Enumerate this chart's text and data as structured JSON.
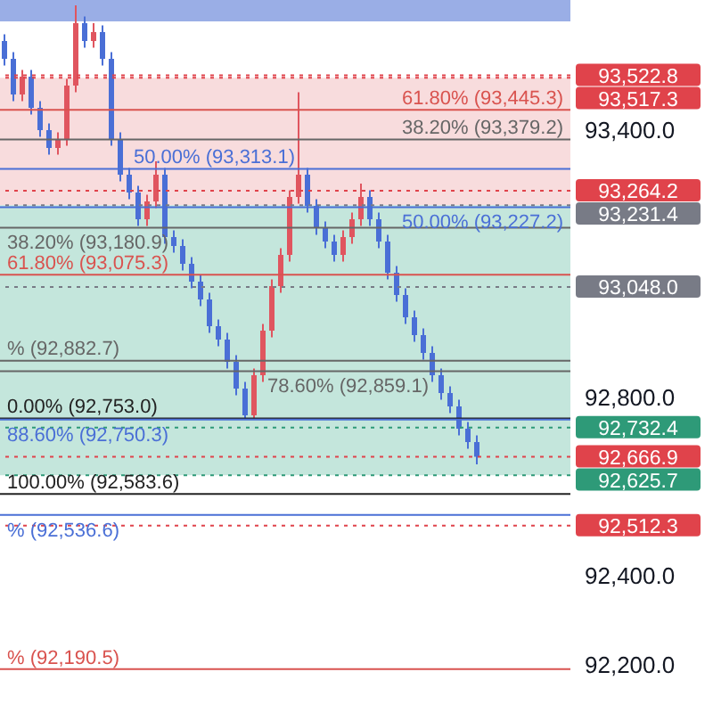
{
  "chart_data": {
    "type": "candlestick",
    "categories": [
      null,
      null,
      null,
      null,
      null,
      null,
      null,
      null,
      null,
      null,
      null,
      null,
      null,
      null,
      null,
      null,
      null,
      null,
      null,
      null,
      null,
      null,
      null,
      null,
      null,
      null,
      null,
      null,
      null,
      null,
      null,
      null,
      null,
      null,
      null,
      null,
      null,
      null,
      null,
      null,
      null,
      null,
      null,
      null,
      null,
      null,
      null,
      null,
      null,
      null,
      null,
      null,
      null,
      null,
      null,
      null,
      null,
      null,
      null,
      null,
      null,
      null,
      null,
      null
    ],
    "ohlc": [
      [
        93600,
        93615,
        93545,
        93560
      ],
      [
        93560,
        93575,
        93465,
        93480
      ],
      [
        93480,
        93535,
        93465,
        93520
      ],
      [
        93520,
        93535,
        93435,
        93450
      ],
      [
        93450,
        93465,
        93385,
        93400
      ],
      [
        93400,
        93415,
        93345,
        93360
      ],
      [
        93360,
        93395,
        93345,
        93380
      ],
      [
        93380,
        93515,
        93365,
        93500
      ],
      [
        93500,
        93680,
        93485,
        93640
      ],
      [
        93640,
        93655,
        93585,
        93600
      ],
      [
        93600,
        93640,
        93585,
        93620
      ],
      [
        93620,
        93635,
        93545,
        93560
      ],
      [
        93560,
        93575,
        93365,
        93380
      ],
      [
        93380,
        93395,
        93285,
        93300
      ],
      [
        93300,
        93315,
        93245,
        93260
      ],
      [
        93260,
        93275,
        93185,
        93200
      ],
      [
        93200,
        93255,
        93185,
        93240
      ],
      [
        93240,
        93330,
        93225,
        93300
      ],
      [
        93300,
        93315,
        93145,
        93160
      ],
      [
        93160,
        93175,
        93125,
        93140
      ],
      [
        93140,
        93155,
        93085,
        93100
      ],
      [
        93100,
        93115,
        93045,
        93060
      ],
      [
        93060,
        93075,
        93005,
        93020
      ],
      [
        93020,
        93035,
        92945,
        92960
      ],
      [
        92960,
        92975,
        92915,
        92930
      ],
      [
        92930,
        92945,
        92865,
        92880
      ],
      [
        92880,
        92895,
        92805,
        92820
      ],
      [
        92820,
        92835,
        92753,
        92760
      ],
      [
        92760,
        92865,
        92753,
        92850
      ],
      [
        92850,
        92965,
        92835,
        92950
      ],
      [
        92950,
        93065,
        92935,
        93050
      ],
      [
        93050,
        93135,
        93035,
        93120
      ],
      [
        93120,
        93265,
        93105,
        93250
      ],
      [
        93250,
        93485,
        93235,
        93300
      ],
      [
        93300,
        93315,
        93215,
        93230
      ],
      [
        93230,
        93245,
        93165,
        93180
      ],
      [
        93180,
        93195,
        93135,
        93150
      ],
      [
        93150,
        93165,
        93105,
        93120
      ],
      [
        93120,
        93175,
        93105,
        93160
      ],
      [
        93160,
        93215,
        93145,
        93200
      ],
      [
        93200,
        93280,
        93185,
        93250
      ],
      [
        93250,
        93265,
        93185,
        93200
      ],
      [
        93200,
        93215,
        93135,
        93150
      ],
      [
        93150,
        93165,
        93065,
        93080
      ],
      [
        93080,
        93095,
        93015,
        93030
      ],
      [
        93030,
        93045,
        92965,
        92980
      ],
      [
        92980,
        92995,
        92925,
        92940
      ],
      [
        92940,
        92955,
        92885,
        92900
      ],
      [
        92900,
        92915,
        92835,
        92850
      ],
      [
        92850,
        92865,
        92795,
        92810
      ],
      [
        92810,
        92825,
        92765,
        92780
      ],
      [
        92780,
        92795,
        92715,
        92730
      ],
      [
        92730,
        92745,
        92685,
        92700
      ],
      [
        92700,
        92715,
        92650,
        92667
      ],
      null,
      null,
      null,
      null,
      null,
      null,
      null,
      null,
      null,
      null
    ],
    "colors": [
      "#4a6fd6",
      "#4a6fd6",
      "#e0555f",
      "#4a6fd6",
      "#4a6fd6",
      "#4a6fd6",
      "#e0555f",
      "#e0555f",
      "#e0555f",
      "#4a6fd6",
      "#e0555f",
      "#4a6fd6",
      "#4a6fd6",
      "#4a6fd6",
      "#4a6fd6",
      "#4a6fd6",
      "#e0555f",
      "#e0555f",
      "#4a6fd6",
      "#4a6fd6",
      "#4a6fd6",
      "#4a6fd6",
      "#4a6fd6",
      "#4a6fd6",
      "#4a6fd6",
      "#4a6fd6",
      "#4a6fd6",
      "#4a6fd6",
      "#e0555f",
      "#e0555f",
      "#e0555f",
      "#e0555f",
      "#e0555f",
      "#e0555f",
      "#4a6fd6",
      "#4a6fd6",
      "#4a6fd6",
      "#4a6fd6",
      "#e0555f",
      "#e0555f",
      "#e0555f",
      "#4a6fd6",
      "#4a6fd6",
      "#4a6fd6",
      "#4a6fd6",
      "#4a6fd6",
      "#4a6fd6",
      "#4a6fd6",
      "#4a6fd6",
      "#4a6fd6",
      "#4a6fd6",
      "#4a6fd6",
      "#4a6fd6",
      "#4a6fd6",
      null,
      null,
      null,
      null,
      null,
      null,
      null,
      null,
      null,
      null
    ],
    "ylim": [
      92092,
      93692
    ],
    "yticks": [
      {
        "value": 93400,
        "label": "93,400.0"
      },
      {
        "value": 92800,
        "label": "92,800.0"
      },
      {
        "value": 92400,
        "label": "92,400.0"
      },
      {
        "value": 92200,
        "label": "92,200.0"
      }
    ],
    "tick_labels": "y",
    "bands": [
      {
        "axis": "y",
        "from": 93644,
        "to": 93692,
        "color": "#9aaee6"
      },
      {
        "axis": "y",
        "from": 93231.4,
        "to": 93517.3,
        "color": "#f8dcdd"
      },
      {
        "axis": "y",
        "from": 92625.7,
        "to": 93231.4,
        "color": "#c4e6dc"
      }
    ],
    "ref_lines": [
      {
        "axis": "y",
        "value": 93445.3,
        "label": "61.80% (93,445.3)",
        "color": "#d9534f",
        "line_style": "solid"
      },
      {
        "axis": "y",
        "value": 93379.2,
        "label": "38.20% (93,379.2)",
        "color": "#666666",
        "line_style": "solid"
      },
      {
        "axis": "y",
        "value": 93313.1,
        "label": "50.00% (93,313.1)",
        "color": "#4a6fd6",
        "line_style": "solid"
      },
      {
        "axis": "y",
        "value": 93227.2,
        "label": "50.00% (93,227.2)",
        "color": "#4a6fd6",
        "line_style": "solid"
      },
      {
        "axis": "y",
        "value": 93180.9,
        "label": "38.20% (93,180.9)",
        "color": "#666666",
        "line_style": "solid"
      },
      {
        "axis": "y",
        "value": 93075.3,
        "label": "61.80% (93,075.3)",
        "color": "#d9534f",
        "line_style": "solid"
      },
      {
        "axis": "y",
        "value": 92882.7,
        "label": "% (92,882.7)",
        "color": "#666666",
        "line_style": "solid"
      },
      {
        "axis": "y",
        "value": 92859.1,
        "label": "78.60% (92,859.1)",
        "color": "#666666",
        "line_style": "solid"
      },
      {
        "axis": "y",
        "value": 92753.0,
        "label": "0.00% (92,753.0)",
        "color": "#222222",
        "line_style": "solid"
      },
      {
        "axis": "y",
        "value": 92750.3,
        "label": "88.60% (92,750.3)",
        "color": "#4a6fd6",
        "line_style": "solid"
      },
      {
        "axis": "y",
        "value": 92583.6,
        "label": "100.00% (92,583.6)",
        "color": "#222222",
        "line_style": "solid"
      },
      {
        "axis": "y",
        "value": 92536.6,
        "label": "% (92,536.6)",
        "color": "#4a6fd6",
        "line_style": "solid"
      },
      {
        "axis": "y",
        "value": 92190.5,
        "label": "% (92,190.5)",
        "color": "#d9534f",
        "line_style": "solid"
      },
      {
        "axis": "y",
        "value": 93522.8,
        "label": "93,522.8",
        "color": "#e0434b",
        "line_style": "dotted"
      },
      {
        "axis": "y",
        "value": 93517.3,
        "label": "93,517.3",
        "color": "#e0434b",
        "line_style": "dotted"
      },
      {
        "axis": "y",
        "value": 93264.2,
        "label": "93,264.2",
        "color": "#e0434b",
        "line_style": "dotted"
      },
      {
        "axis": "y",
        "value": 93231.4,
        "label": "93,231.4",
        "color": "#787b86",
        "line_style": "dotted"
      },
      {
        "axis": "y",
        "value": 93048.0,
        "label": "93,048.0",
        "color": "#787b86",
        "line_style": "dotted"
      },
      {
        "axis": "y",
        "value": 92732.4,
        "label": "92,732.4",
        "color": "#2e9a78",
        "line_style": "dotted"
      },
      {
        "axis": "y",
        "value": 92666.9,
        "label": "92,666.9",
        "color": "#e0434b",
        "line_style": "dotted"
      },
      {
        "axis": "y",
        "value": 92625.7,
        "label": "92,625.7",
        "color": "#2e9a78",
        "line_style": "dotted"
      },
      {
        "axis": "y",
        "value": 92512.3,
        "label": "92,512.3",
        "color": "#e0434b",
        "line_style": "dotted"
      }
    ]
  }
}
